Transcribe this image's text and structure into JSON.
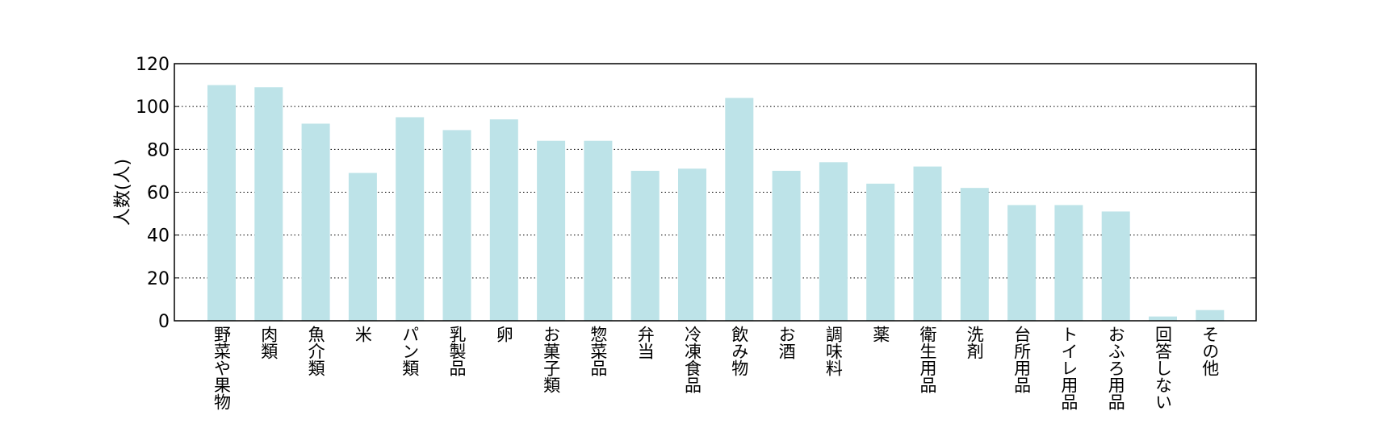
{
  "chart_data": {
    "type": "bar",
    "title": "",
    "xlabel": "",
    "ylabel": "人数(人)",
    "ylim": [
      0,
      120
    ],
    "yticks": [
      0,
      20,
      40,
      60,
      80,
      100,
      120
    ],
    "grid": true,
    "bar_color": "#bde3e8",
    "categories": [
      "野菜や果物",
      "肉類",
      "魚介類",
      "米",
      "パン類",
      "乳製品",
      "卵",
      "お菓子類",
      "惣菜品",
      "弁当",
      "冷凍食品",
      "飲み物",
      "お酒",
      "調味料",
      "薬",
      "衛生用品",
      "洗剤",
      "台所用品",
      "トイレ用品",
      "おふろ用品",
      "回答しない",
      "その他"
    ],
    "values": [
      110,
      109,
      92,
      69,
      95,
      89,
      94,
      84,
      84,
      70,
      71,
      104,
      70,
      74,
      64,
      72,
      62,
      54,
      54,
      51,
      2,
      5
    ]
  }
}
